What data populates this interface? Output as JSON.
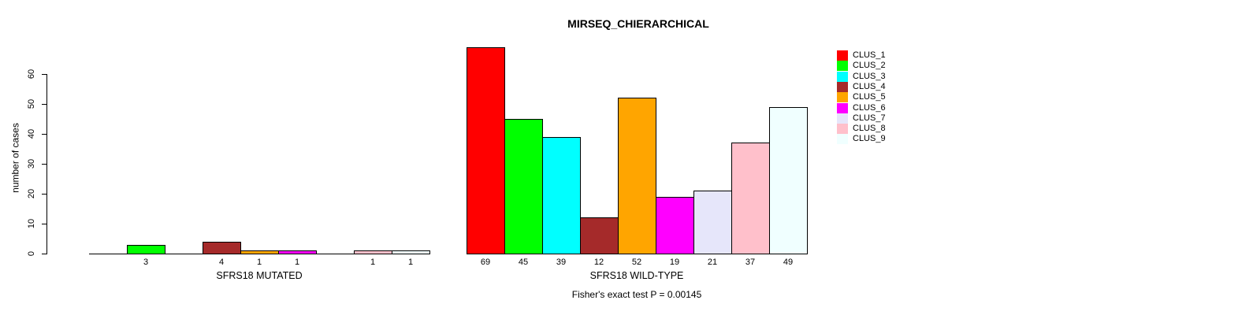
{
  "chart_data": {
    "type": "bar",
    "title": "MIRSEQ_CHIERARCHICAL",
    "ylabel": "number of cases",
    "footer": "Fisher's exact test P = 0.00145",
    "categories": [
      "CLUS_1",
      "CLUS_2",
      "CLUS_3",
      "CLUS_4",
      "CLUS_5",
      "CLUS_6",
      "CLUS_7",
      "CLUS_8",
      "CLUS_9"
    ],
    "colors": [
      "#FF0000",
      "#00FF00",
      "#00FFFF",
      "#A52A2A",
      "#FFA500",
      "#FF00FF",
      "#E6E6FA",
      "#FFC0CB",
      "#F0FFFF"
    ],
    "series": [
      {
        "name": "SFRS18 MUTATED",
        "values": [
          0,
          3,
          0,
          4,
          1,
          1,
          0,
          1,
          1
        ]
      },
      {
        "name": "SFRS18 WILD-TYPE",
        "values": [
          69,
          45,
          39,
          12,
          52,
          19,
          21,
          37,
          49
        ]
      }
    ],
    "y_ticks": [
      0,
      10,
      20,
      30,
      40,
      50,
      60
    ],
    "ylim": [
      0,
      60
    ],
    "grid": false,
    "legend_position": "right",
    "bar_value_labels_shown_for_nonzero_only": true
  }
}
